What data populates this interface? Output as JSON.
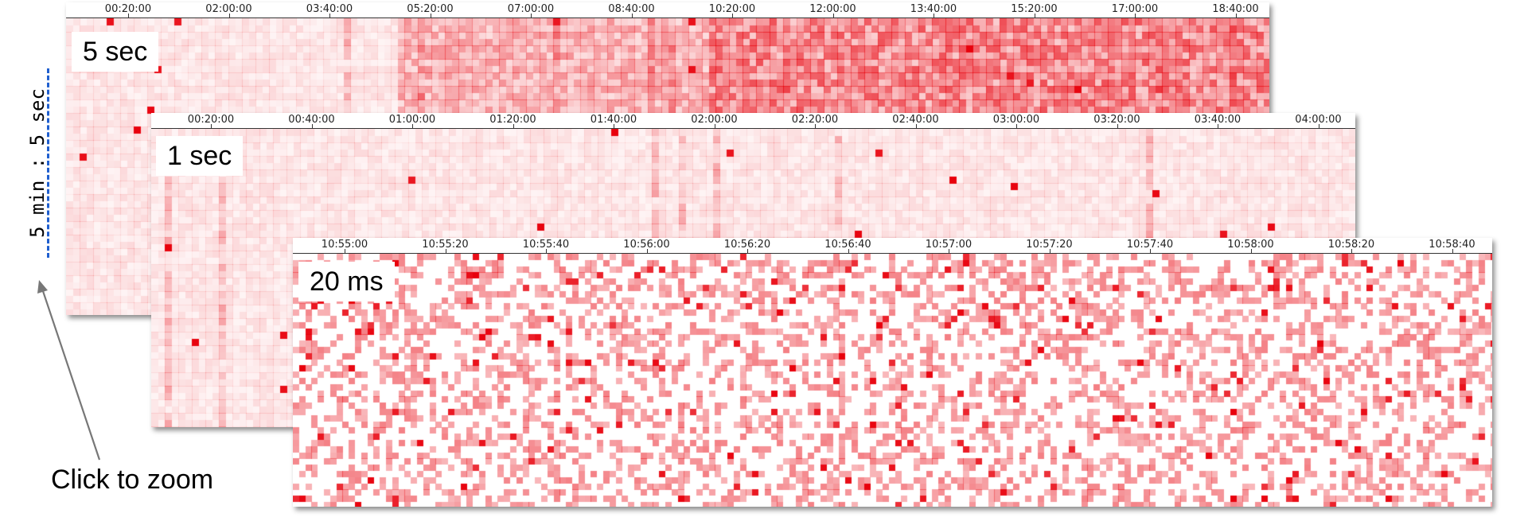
{
  "chart_data": [
    {
      "type": "heatmap",
      "label": "5 sec",
      "x_tick_labels": [
        "00:20:00",
        "02:00:00",
        "03:40:00",
        "05:20:00",
        "07:00:00",
        "08:40:00",
        "10:20:00",
        "12:00:00",
        "13:40:00",
        "15:20:00",
        "17:00:00",
        "18:40:00"
      ],
      "color": "#e8000b",
      "intensity_profile": [
        {
          "from": 0.0,
          "to": 0.27,
          "level": 0.12
        },
        {
          "from": 0.27,
          "to": 0.53,
          "level": 0.35
        },
        {
          "from": 0.53,
          "to": 1.0,
          "level": 0.55
        }
      ]
    },
    {
      "type": "heatmap",
      "label": "1 sec",
      "x_tick_labels": [
        "00:20:00",
        "00:40:00",
        "01:00:00",
        "01:20:00",
        "01:40:00",
        "02:00:00",
        "02:20:00",
        "02:40:00",
        "03:00:00",
        "03:20:00",
        "03:40:00",
        "04:00:00"
      ],
      "color": "#e8000b",
      "intensity_profile": [
        {
          "from": 0.0,
          "to": 1.0,
          "level": 0.12
        }
      ]
    },
    {
      "type": "heatmap",
      "label": "20 ms",
      "x_tick_labels": [
        "10:55:00",
        "10:55:20",
        "10:55:40",
        "10:56:00",
        "10:56:20",
        "10:56:40",
        "10:57:00",
        "10:57:20",
        "10:57:40",
        "10:58:00",
        "10:58:20",
        "10:58:40"
      ],
      "color": "#e8000b",
      "intensity_profile": [
        {
          "from": 0.0,
          "to": 1.0,
          "level": 0.4
        }
      ]
    }
  ],
  "range_indicator": {
    "label": "5 min : 5 sec",
    "color": "#1f5fcf"
  },
  "hint": {
    "text": "Click to zoom"
  }
}
